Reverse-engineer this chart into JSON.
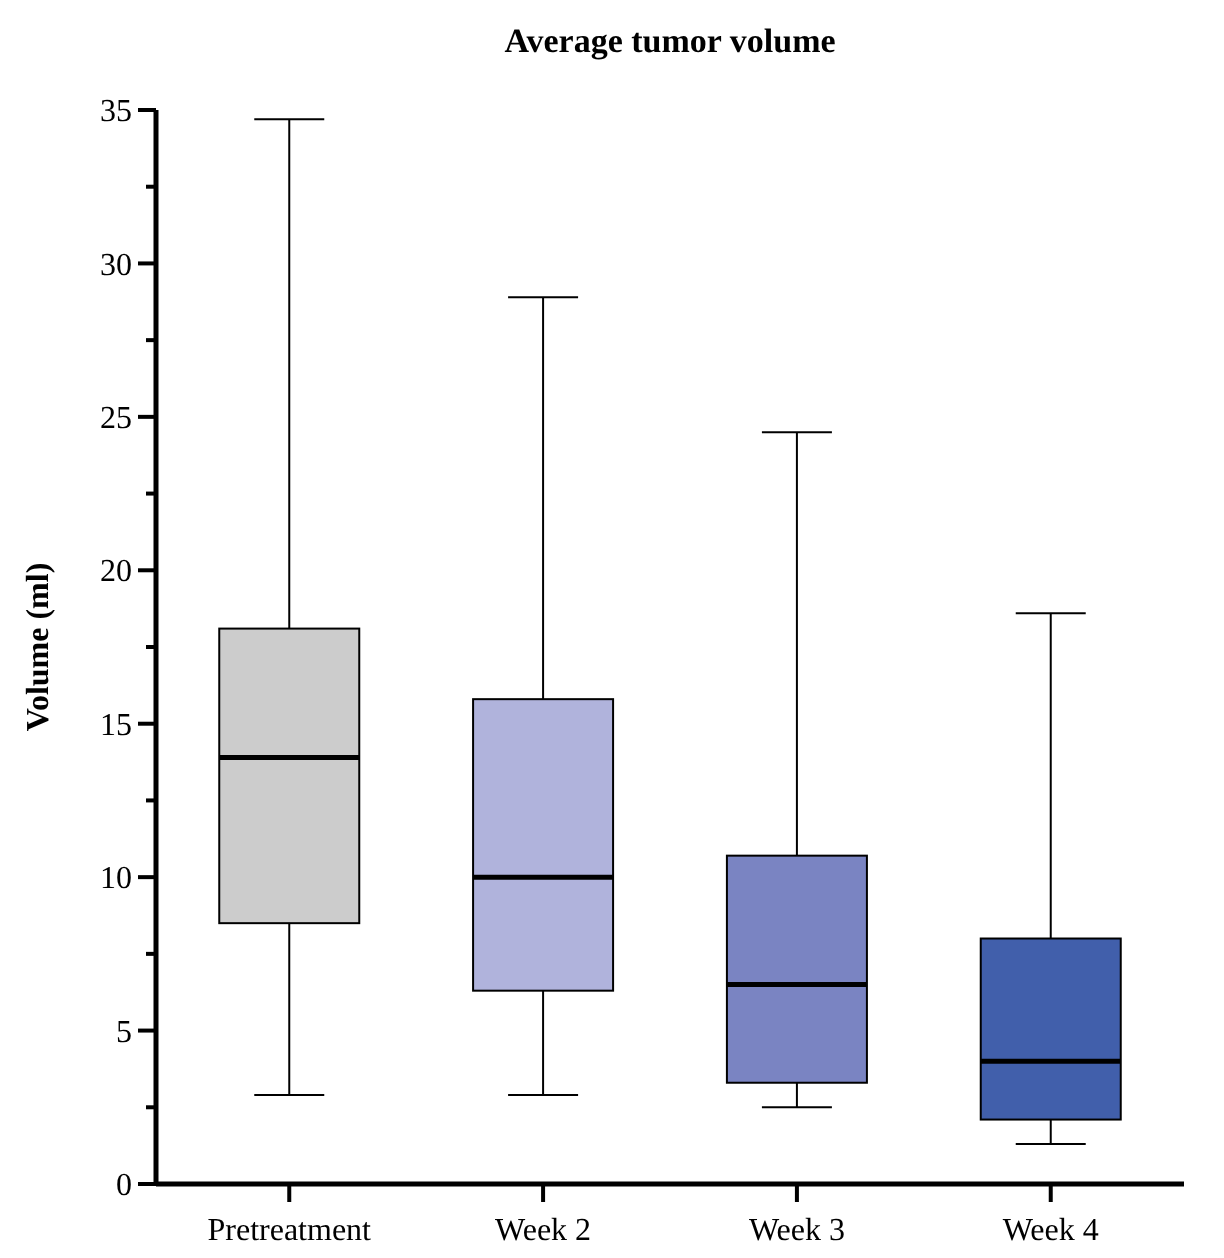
{
  "chart_data": {
    "type": "box",
    "title": "Average tumor volume",
    "ylabel": "Volume (ml)",
    "categories": [
      "Pretreatment",
      "Week 2",
      "Week 3",
      "Week 4"
    ],
    "colors": [
      "#cccccc",
      "#b0b3dc",
      "#7a84c2",
      "#415fab"
    ],
    "boxes": [
      {
        "low": 2.9,
        "q1": 8.5,
        "median": 13.9,
        "q3": 18.1,
        "high": 34.7
      },
      {
        "low": 2.9,
        "q1": 6.3,
        "median": 10.0,
        "q3": 15.8,
        "high": 28.9
      },
      {
        "low": 2.5,
        "q1": 3.3,
        "median": 6.5,
        "q3": 10.7,
        "high": 24.5
      },
      {
        "low": 1.3,
        "q1": 2.1,
        "median": 4.0,
        "q3": 8.0,
        "high": 18.6
      }
    ],
    "ylim": [
      0,
      35
    ],
    "yticks": [
      0,
      {
        "value": 2.5,
        "label": null
      },
      5,
      {
        "value": 7.5,
        "label": null
      },
      10,
      {
        "value": 12.5,
        "label": null
      },
      15,
      {
        "value": 17.5,
        "label": null
      },
      20,
      {
        "value": 22.5,
        "label": null
      },
      25,
      {
        "value": 27.5,
        "label": null
      },
      30,
      {
        "value": 32.5,
        "label": null
      },
      35
    ],
    "grid": false
  }
}
